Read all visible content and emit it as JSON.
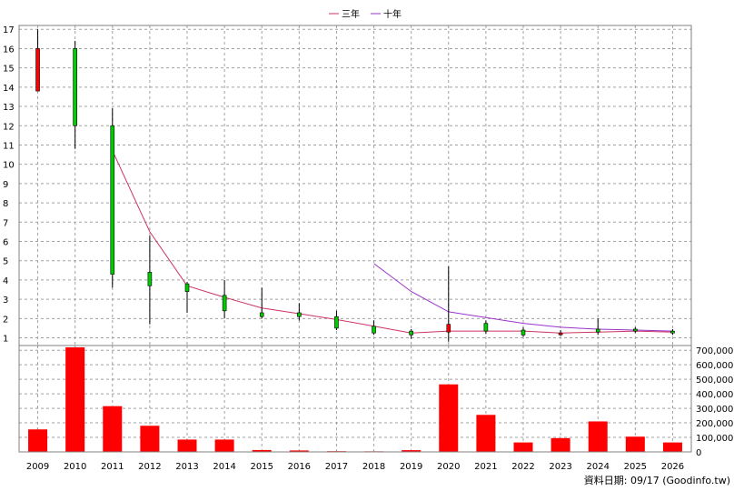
{
  "chart_data": [
    {
      "type": "candlestick",
      "legend": [
        {
          "label": "三年",
          "color": "#cc3366"
        },
        {
          "label": "十年",
          "color": "#9933cc"
        }
      ],
      "legend_placement": "top-center",
      "x_ticks": [
        "2009",
        "2010",
        "2011",
        "2012",
        "2013",
        "2014",
        "2015",
        "2016",
        "2017",
        "2018",
        "2019",
        "2020",
        "2021",
        "2022",
        "2023",
        "2024",
        "2025",
        "2026"
      ],
      "y_ticks": [
        "1",
        "2",
        "3",
        "4",
        "5",
        "6",
        "7",
        "8",
        "9",
        "10",
        "11",
        "12",
        "13",
        "14",
        "15",
        "16",
        "17"
      ],
      "ylim": [
        0.6,
        17.2
      ],
      "grid": true,
      "up_color": "#ff0000",
      "down_color": "#00cc00",
      "candles": [
        {
          "year": "2009",
          "open": 13.8,
          "close": 16.0,
          "high": 17.0,
          "low": 13.8
        },
        {
          "year": "2010",
          "open": 16.0,
          "close": 12.0,
          "high": 16.4,
          "low": 10.8
        },
        {
          "year": "2011",
          "open": 12.0,
          "close": 4.3,
          "high": 12.9,
          "low": 3.6
        },
        {
          "year": "2012",
          "open": 4.4,
          "close": 3.7,
          "high": 6.3,
          "low": 1.7
        },
        {
          "year": "2013",
          "open": 3.8,
          "close": 3.4,
          "high": 3.9,
          "low": 2.3
        },
        {
          "year": "2014",
          "open": 3.2,
          "close": 2.4,
          "high": 4.0,
          "low": 2.0
        },
        {
          "year": "2015",
          "open": 2.3,
          "close": 2.1,
          "high": 3.6,
          "low": 2.0
        },
        {
          "year": "2016",
          "open": 2.3,
          "close": 2.1,
          "high": 2.8,
          "low": 1.9
        },
        {
          "year": "2017",
          "open": 2.1,
          "close": 1.5,
          "high": 2.4,
          "low": 1.4
        },
        {
          "year": "2018",
          "open": 1.6,
          "close": 1.25,
          "high": 1.9,
          "low": 1.15
        },
        {
          "year": "2019",
          "open": 1.35,
          "close": 1.15,
          "high": 1.45,
          "low": 0.95
        },
        {
          "year": "2020",
          "open": 1.3,
          "close": 1.7,
          "high": 4.7,
          "low": 0.8
        },
        {
          "year": "2021",
          "open": 1.75,
          "close": 1.35,
          "high": 1.9,
          "low": 1.2
        },
        {
          "year": "2022",
          "open": 1.4,
          "close": 1.15,
          "high": 1.55,
          "low": 1.05
        },
        {
          "year": "2023",
          "open": 1.2,
          "close": 1.25,
          "high": 1.4,
          "low": 1.1
        },
        {
          "year": "2024",
          "open": 1.45,
          "close": 1.3,
          "high": 2.0,
          "low": 1.15
        },
        {
          "year": "2025",
          "open": 1.45,
          "close": 1.35,
          "high": 1.55,
          "low": 1.25
        },
        {
          "year": "2026",
          "open": 1.35,
          "close": 1.25,
          "high": 1.45,
          "low": 1.15
        }
      ],
      "series": [
        {
          "name": "三年",
          "color": "#cc3366",
          "x": [
            "2011",
            "2012",
            "2013",
            "2014",
            "2015",
            "2016",
            "2017",
            "2018",
            "2019",
            "2020",
            "2021",
            "2022",
            "2023",
            "2024",
            "2025",
            "2026"
          ],
          "values": [
            10.7,
            6.5,
            3.7,
            3.1,
            2.55,
            2.25,
            1.95,
            1.6,
            1.25,
            1.35,
            1.35,
            1.35,
            1.25,
            1.3,
            1.35,
            1.3
          ]
        },
        {
          "name": "十年",
          "color": "#9933cc",
          "x": [
            "2018",
            "2019",
            "2020",
            "2021",
            "2022",
            "2023",
            "2024",
            "2025",
            "2026"
          ],
          "values": [
            4.85,
            3.4,
            2.35,
            2.05,
            1.75,
            1.55,
            1.45,
            1.4,
            1.35
          ]
        }
      ]
    },
    {
      "type": "bar",
      "categories": [
        "2009",
        "2010",
        "2011",
        "2012",
        "2013",
        "2014",
        "2015",
        "2016",
        "2017",
        "2018",
        "2019",
        "2020",
        "2021",
        "2022",
        "2023",
        "2024",
        "2025",
        "2026"
      ],
      "values": [
        155000,
        720000,
        315000,
        180000,
        85000,
        85000,
        13000,
        10000,
        5000,
        4000,
        12000,
        465000,
        255000,
        65000,
        95000,
        210000,
        105000,
        65000
      ],
      "y_ticks": [
        "0",
        "100,000",
        "200,000",
        "300,000",
        "400,000",
        "500,000",
        "600,000",
        "700,000"
      ],
      "ylim": [
        0,
        720000
      ],
      "color": "#ff0000",
      "grid": true
    }
  ],
  "footer_text": "資料日期: 09/17 (Goodinfo.tw)"
}
